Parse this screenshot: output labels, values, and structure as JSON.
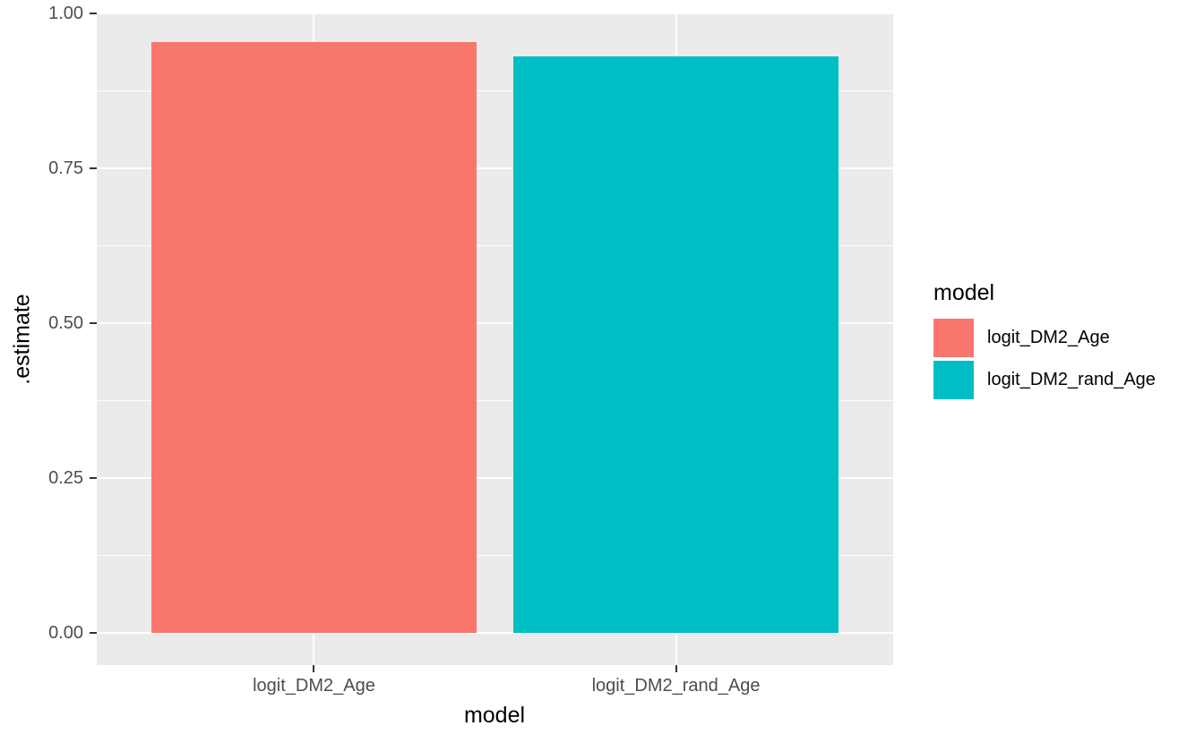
{
  "style": {
    "background": "#FFFFFF",
    "panel_background": "#EBEBEB",
    "grid_color": "#FFFFFF",
    "axis_tick_color": "#333333",
    "axis_text_color": "#4D4D4D",
    "axis_title_color": "#000000"
  },
  "chart_data": {
    "type": "bar",
    "title": "",
    "xlabel": "model",
    "ylabel": ".estimate",
    "categories": [
      "logit_DM2_Age",
      "logit_DM2_rand_Age"
    ],
    "values": [
      0.954,
      0.931
    ],
    "colors": [
      "#F8766D",
      "#00BFC4"
    ],
    "ylim": [
      0,
      1
    ],
    "y_ticks": [
      {
        "value": 0.0,
        "label": "0.00"
      },
      {
        "value": 0.25,
        "label": "0.25"
      },
      {
        "value": 0.5,
        "label": "0.50"
      },
      {
        "value": 0.75,
        "label": "0.75"
      },
      {
        "value": 1.0,
        "label": "1.00"
      }
    ],
    "y_minor_breaks": [
      0.125,
      0.375,
      0.625,
      0.875
    ],
    "grid": true,
    "legend": {
      "title": "model",
      "position": "right",
      "items": [
        {
          "label": "logit_DM2_Age",
          "color": "#F8766D"
        },
        {
          "label": "logit_DM2_rand_Age",
          "color": "#00BFC4"
        }
      ]
    }
  }
}
